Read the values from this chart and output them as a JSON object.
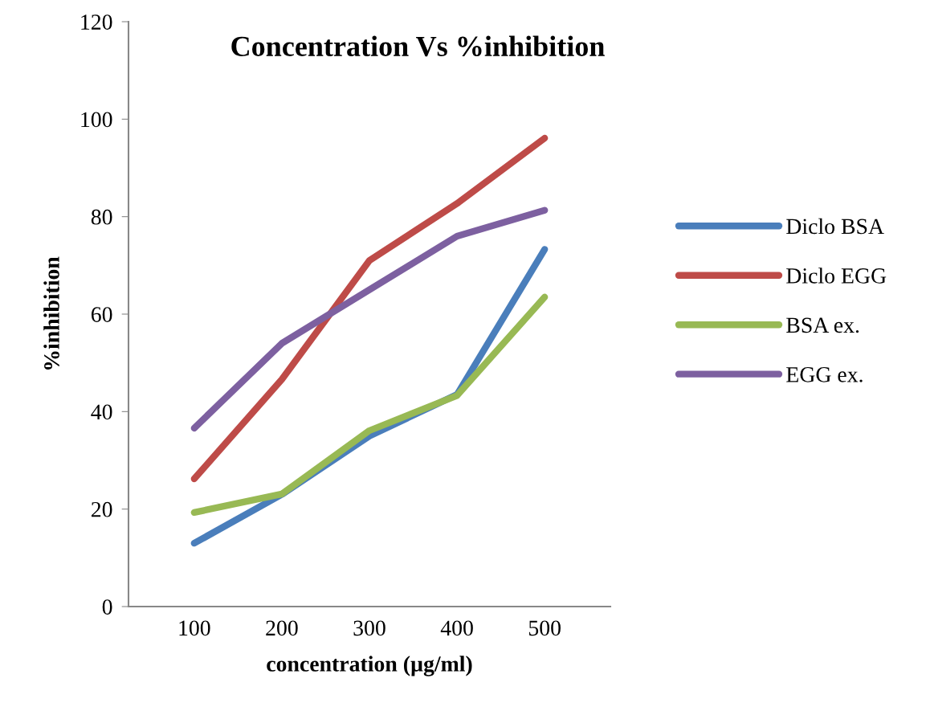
{
  "chart_data": {
    "type": "line",
    "title": "Concentration Vs %inhibition",
    "xlabel": "concentration (µg/ml)",
    "ylabel": "%inhibition",
    "categories": [
      "100",
      "200",
      "300",
      "400",
      "500"
    ],
    "series": [
      {
        "name": "Diclo BSA",
        "color": "#4a7ebb",
        "values": [
          13,
          23,
          35,
          43.5,
          73.3
        ]
      },
      {
        "name": "Diclo EGG",
        "color": "#be4b48",
        "values": [
          26.2,
          46.6,
          71,
          82.7,
          96.1
        ]
      },
      {
        "name": "BSA ex.",
        "color": "#98b954",
        "values": [
          19.3,
          23.1,
          36.1,
          43.3,
          63.5
        ]
      },
      {
        "name": "EGG ex.",
        "color": "#7d60a0",
        "values": [
          36.6,
          54,
          65,
          76,
          81.3
        ]
      }
    ],
    "ylim": [
      0,
      120
    ],
    "yticks": [
      0,
      20,
      40,
      60,
      80,
      100,
      120
    ],
    "grid": false,
    "legend": "right",
    "marker": "none",
    "line_style": "solid"
  }
}
